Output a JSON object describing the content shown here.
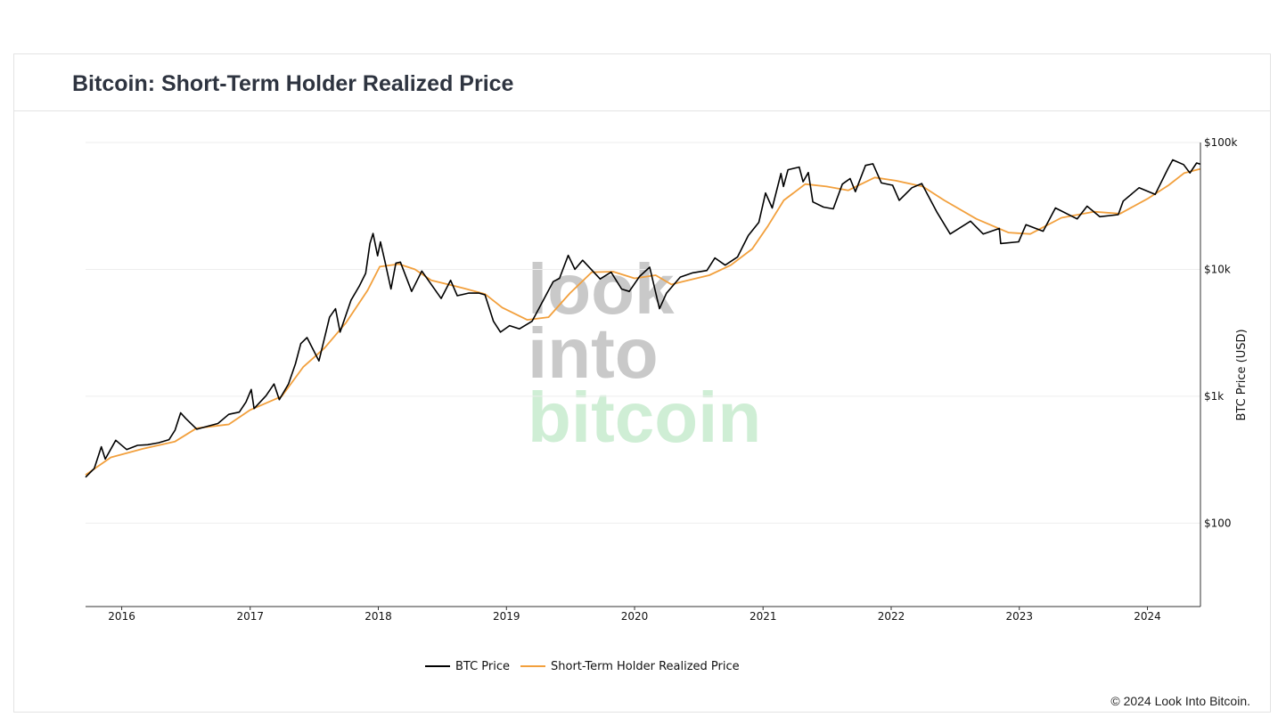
{
  "page": {
    "title": "Bitcoin: Short-Term Holder Realized Price",
    "copyright": "© 2024 Look Into Bitcoin."
  },
  "watermark": {
    "line1": "look",
    "line2": "into",
    "line3": "bitcoin",
    "color_dark": "#c9c9c9",
    "color_green": "#cfeed5"
  },
  "colors": {
    "btc_price": "#000000",
    "sth_realized": "#f2a03d",
    "grid": "#eeeeee"
  },
  "chart_data": {
    "type": "line",
    "title": "Bitcoin: Short-Term Holder Realized Price",
    "xlabel": "",
    "ylabel": "BTC Price (USD)",
    "y_scale": "log",
    "ylim": [
      22,
      100000
    ],
    "xlim": [
      "2015-09-20",
      "2024-05-31"
    ],
    "y_ticks": [
      {
        "value": 100,
        "label": "$100"
      },
      {
        "value": 1000,
        "label": "$1k"
      },
      {
        "value": 10000,
        "label": "$10k"
      },
      {
        "value": 100000,
        "label": "$100k"
      }
    ],
    "x_ticks": [
      {
        "value": "2016-01-01",
        "label": "2016"
      },
      {
        "value": "2017-01-01",
        "label": "2017"
      },
      {
        "value": "2018-01-01",
        "label": "2018"
      },
      {
        "value": "2019-01-01",
        "label": "2019"
      },
      {
        "value": "2020-01-01",
        "label": "2020"
      },
      {
        "value": "2021-01-01",
        "label": "2021"
      },
      {
        "value": "2022-01-01",
        "label": "2022"
      },
      {
        "value": "2023-01-01",
        "label": "2023"
      },
      {
        "value": "2024-01-01",
        "label": "2024"
      }
    ],
    "grid": true,
    "legend": "bottom-center",
    "series": [
      {
        "name": "BTC Price",
        "color": "#000000",
        "points": [
          [
            "2015-09-20",
            230
          ],
          [
            "2015-10-15",
            270
          ],
          [
            "2015-11-04",
            400
          ],
          [
            "2015-11-15",
            320
          ],
          [
            "2015-12-15",
            450
          ],
          [
            "2016-01-15",
            380
          ],
          [
            "2016-02-15",
            410
          ],
          [
            "2016-03-15",
            415
          ],
          [
            "2016-04-15",
            430
          ],
          [
            "2016-05-15",
            455
          ],
          [
            "2016-06-01",
            540
          ],
          [
            "2016-06-17",
            740
          ],
          [
            "2016-07-01",
            670
          ],
          [
            "2016-08-02",
            550
          ],
          [
            "2016-09-01",
            580
          ],
          [
            "2016-10-01",
            610
          ],
          [
            "2016-11-01",
            720
          ],
          [
            "2016-12-01",
            750
          ],
          [
            "2016-12-20",
            900
          ],
          [
            "2017-01-04",
            1130
          ],
          [
            "2017-01-12",
            800
          ],
          [
            "2017-02-15",
            1010
          ],
          [
            "2017-03-10",
            1250
          ],
          [
            "2017-03-25",
            940
          ],
          [
            "2017-04-20",
            1250
          ],
          [
            "2017-05-10",
            1800
          ],
          [
            "2017-05-25",
            2600
          ],
          [
            "2017-06-12",
            2900
          ],
          [
            "2017-07-16",
            1900
          ],
          [
            "2017-08-15",
            4200
          ],
          [
            "2017-09-01",
            4900
          ],
          [
            "2017-09-14",
            3200
          ],
          [
            "2017-10-15",
            5700
          ],
          [
            "2017-11-08",
            7400
          ],
          [
            "2017-11-26",
            9300
          ],
          [
            "2017-12-08",
            16000
          ],
          [
            "2017-12-17",
            19200
          ],
          [
            "2017-12-30",
            12800
          ],
          [
            "2018-01-07",
            16500
          ],
          [
            "2018-01-20",
            11500
          ],
          [
            "2018-02-06",
            7000
          ],
          [
            "2018-02-20",
            11200
          ],
          [
            "2018-03-05",
            11400
          ],
          [
            "2018-04-06",
            6700
          ],
          [
            "2018-05-05",
            9700
          ],
          [
            "2018-06-29",
            5900
          ],
          [
            "2018-07-26",
            8200
          ],
          [
            "2018-08-14",
            6200
          ],
          [
            "2018-09-15",
            6500
          ],
          [
            "2018-10-15",
            6500
          ],
          [
            "2018-11-01",
            6300
          ],
          [
            "2018-11-25",
            3900
          ],
          [
            "2018-12-15",
            3200
          ],
          [
            "2019-01-10",
            3600
          ],
          [
            "2019-02-07",
            3400
          ],
          [
            "2019-03-15",
            3900
          ],
          [
            "2019-04-05",
            5000
          ],
          [
            "2019-05-14",
            8000
          ],
          [
            "2019-06-01",
            8500
          ],
          [
            "2019-06-26",
            12900
          ],
          [
            "2019-07-15",
            10000
          ],
          [
            "2019-08-06",
            11800
          ],
          [
            "2019-09-25",
            8400
          ],
          [
            "2019-10-26",
            9500
          ],
          [
            "2019-11-25",
            7000
          ],
          [
            "2019-12-17",
            6700
          ],
          [
            "2020-01-15",
            8800
          ],
          [
            "2020-02-13",
            10400
          ],
          [
            "2020-03-12",
            4900
          ],
          [
            "2020-04-01",
            6500
          ],
          [
            "2020-05-10",
            8700
          ],
          [
            "2020-06-15",
            9400
          ],
          [
            "2020-07-25",
            9800
          ],
          [
            "2020-08-17",
            12300
          ],
          [
            "2020-09-15",
            10800
          ],
          [
            "2020-10-20",
            12500
          ],
          [
            "2020-11-20",
            18500
          ],
          [
            "2020-12-20",
            23500
          ],
          [
            "2021-01-08",
            40000
          ],
          [
            "2021-01-27",
            30500
          ],
          [
            "2021-02-21",
            57000
          ],
          [
            "2021-02-28",
            45000
          ],
          [
            "2021-03-13",
            61000
          ],
          [
            "2021-04-14",
            64000
          ],
          [
            "2021-04-25",
            49000
          ],
          [
            "2021-05-10",
            58000
          ],
          [
            "2021-05-23",
            34000
          ],
          [
            "2021-06-22",
            31000
          ],
          [
            "2021-07-20",
            30000
          ],
          [
            "2021-08-15",
            47000
          ],
          [
            "2021-09-06",
            52000
          ],
          [
            "2021-09-21",
            41000
          ],
          [
            "2021-10-20",
            66000
          ],
          [
            "2021-11-10",
            68000
          ],
          [
            "2021-12-04",
            48000
          ],
          [
            "2022-01-05",
            46000
          ],
          [
            "2022-01-24",
            35000
          ],
          [
            "2022-03-01",
            44000
          ],
          [
            "2022-03-29",
            47500
          ],
          [
            "2022-05-12",
            28000
          ],
          [
            "2022-06-18",
            19000
          ],
          [
            "2022-08-15",
            24000
          ],
          [
            "2022-09-20",
            19000
          ],
          [
            "2022-11-05",
            21000
          ],
          [
            "2022-11-09",
            16000
          ],
          [
            "2022-12-30",
            16500
          ],
          [
            "2023-01-20",
            22500
          ],
          [
            "2023-03-10",
            20000
          ],
          [
            "2023-04-14",
            30500
          ],
          [
            "2023-06-15",
            25000
          ],
          [
            "2023-07-13",
            31500
          ],
          [
            "2023-08-18",
            26000
          ],
          [
            "2023-10-10",
            27000
          ],
          [
            "2023-10-24",
            34500
          ],
          [
            "2023-12-08",
            44000
          ],
          [
            "2024-01-23",
            39000
          ],
          [
            "2024-02-28",
            62000
          ],
          [
            "2024-03-13",
            73000
          ],
          [
            "2024-04-13",
            67000
          ],
          [
            "2024-05-01",
            57500
          ],
          [
            "2024-05-20",
            69000
          ],
          [
            "2024-05-31",
            67500
          ]
        ]
      },
      {
        "name": "Short-Term Holder Realized Price",
        "color": "#f2a03d",
        "points": [
          [
            "2015-09-20",
            240
          ],
          [
            "2015-12-01",
            330
          ],
          [
            "2016-03-01",
            385
          ],
          [
            "2016-06-01",
            440
          ],
          [
            "2016-08-01",
            560
          ],
          [
            "2016-11-01",
            600
          ],
          [
            "2017-01-01",
            780
          ],
          [
            "2017-04-01",
            1000
          ],
          [
            "2017-06-01",
            1700
          ],
          [
            "2017-08-01",
            2400
          ],
          [
            "2017-10-01",
            3800
          ],
          [
            "2017-12-01",
            6800
          ],
          [
            "2018-01-05",
            10500
          ],
          [
            "2018-03-01",
            11000
          ],
          [
            "2018-04-15",
            10000
          ],
          [
            "2018-06-01",
            8200
          ],
          [
            "2018-09-01",
            7100
          ],
          [
            "2018-11-01",
            6400
          ],
          [
            "2018-12-20",
            5000
          ],
          [
            "2019-03-01",
            4000
          ],
          [
            "2019-05-01",
            4200
          ],
          [
            "2019-07-01",
            6500
          ],
          [
            "2019-09-01",
            9500
          ],
          [
            "2019-11-01",
            9600
          ],
          [
            "2020-01-01",
            8500
          ],
          [
            "2020-03-01",
            9000
          ],
          [
            "2020-04-15",
            7600
          ],
          [
            "2020-06-01",
            8200
          ],
          [
            "2020-08-01",
            9000
          ],
          [
            "2020-10-01",
            10800
          ],
          [
            "2020-12-01",
            14500
          ],
          [
            "2021-01-15",
            22000
          ],
          [
            "2021-03-01",
            35000
          ],
          [
            "2021-05-01",
            47000
          ],
          [
            "2021-07-01",
            45000
          ],
          [
            "2021-09-01",
            42000
          ],
          [
            "2021-11-15",
            53000
          ],
          [
            "2022-01-15",
            50000
          ],
          [
            "2022-04-01",
            45000
          ],
          [
            "2022-06-01",
            35000
          ],
          [
            "2022-09-01",
            25000
          ],
          [
            "2022-12-01",
            19500
          ],
          [
            "2023-02-01",
            19000
          ],
          [
            "2023-05-01",
            25500
          ],
          [
            "2023-08-01",
            28500
          ],
          [
            "2023-10-15",
            27500
          ],
          [
            "2024-01-01",
            36000
          ],
          [
            "2024-03-01",
            46000
          ],
          [
            "2024-04-15",
            57500
          ],
          [
            "2024-05-31",
            62000
          ]
        ]
      }
    ]
  }
}
